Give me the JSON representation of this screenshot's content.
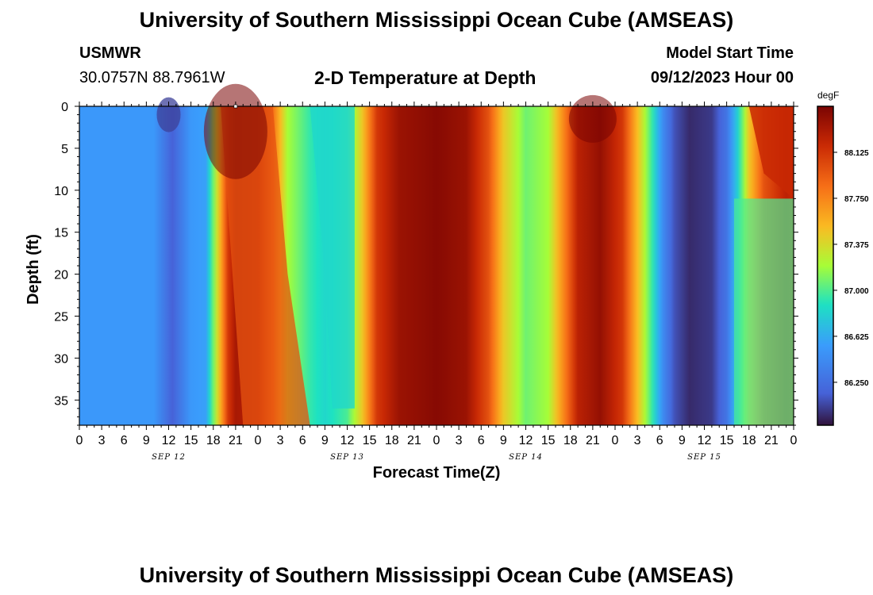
{
  "header": {
    "title": "University of Southern Mississippi Ocean Cube (AMSEAS)",
    "station_id": "USMWR",
    "coordinates": "30.0757N  88.7961W",
    "plot_title": "2-D Temperature at Depth",
    "start_label": "Model Start Time",
    "start_value": "09/12/2023 Hour 00"
  },
  "footer": {
    "title": "University of Southern Mississippi Ocean Cube (AMSEAS)"
  },
  "chart_data": {
    "type": "heatmap",
    "ylabel": "Depth (ft)",
    "xlabel": "Forecast Time(Z)",
    "colorbar_unit": "degF",
    "colorbar_ticks": [
      "88.125",
      "87.750",
      "87.375",
      "87.000",
      "86.625",
      "86.250"
    ],
    "colorbar_range": [
      85.9,
      88.5
    ],
    "y_ticks": [
      "0",
      "5",
      "10",
      "15",
      "20",
      "25",
      "30",
      "35"
    ],
    "ylim": [
      0,
      38
    ],
    "y_inverted": true,
    "x_tick_labels": [
      "0",
      "3",
      "6",
      "9",
      "12",
      "15",
      "18",
      "21",
      "0",
      "3",
      "6",
      "9",
      "12",
      "15",
      "18",
      "21",
      "0",
      "3",
      "6",
      "9",
      "12",
      "15",
      "18",
      "21",
      "0",
      "3",
      "6",
      "9",
      "12",
      "15",
      "18",
      "21",
      "0"
    ],
    "xlim_hours": [
      0,
      96
    ],
    "day_labels": [
      "SEP 12",
      "SEP 13",
      "SEP 14",
      "SEP 15"
    ],
    "grid": false,
    "colors": {
      "cold": "#30123b",
      "mid_cool": "#4686fb",
      "mid": "#1ae4b6",
      "warm": "#fb8022",
      "hot": "#7a0403"
    }
  }
}
